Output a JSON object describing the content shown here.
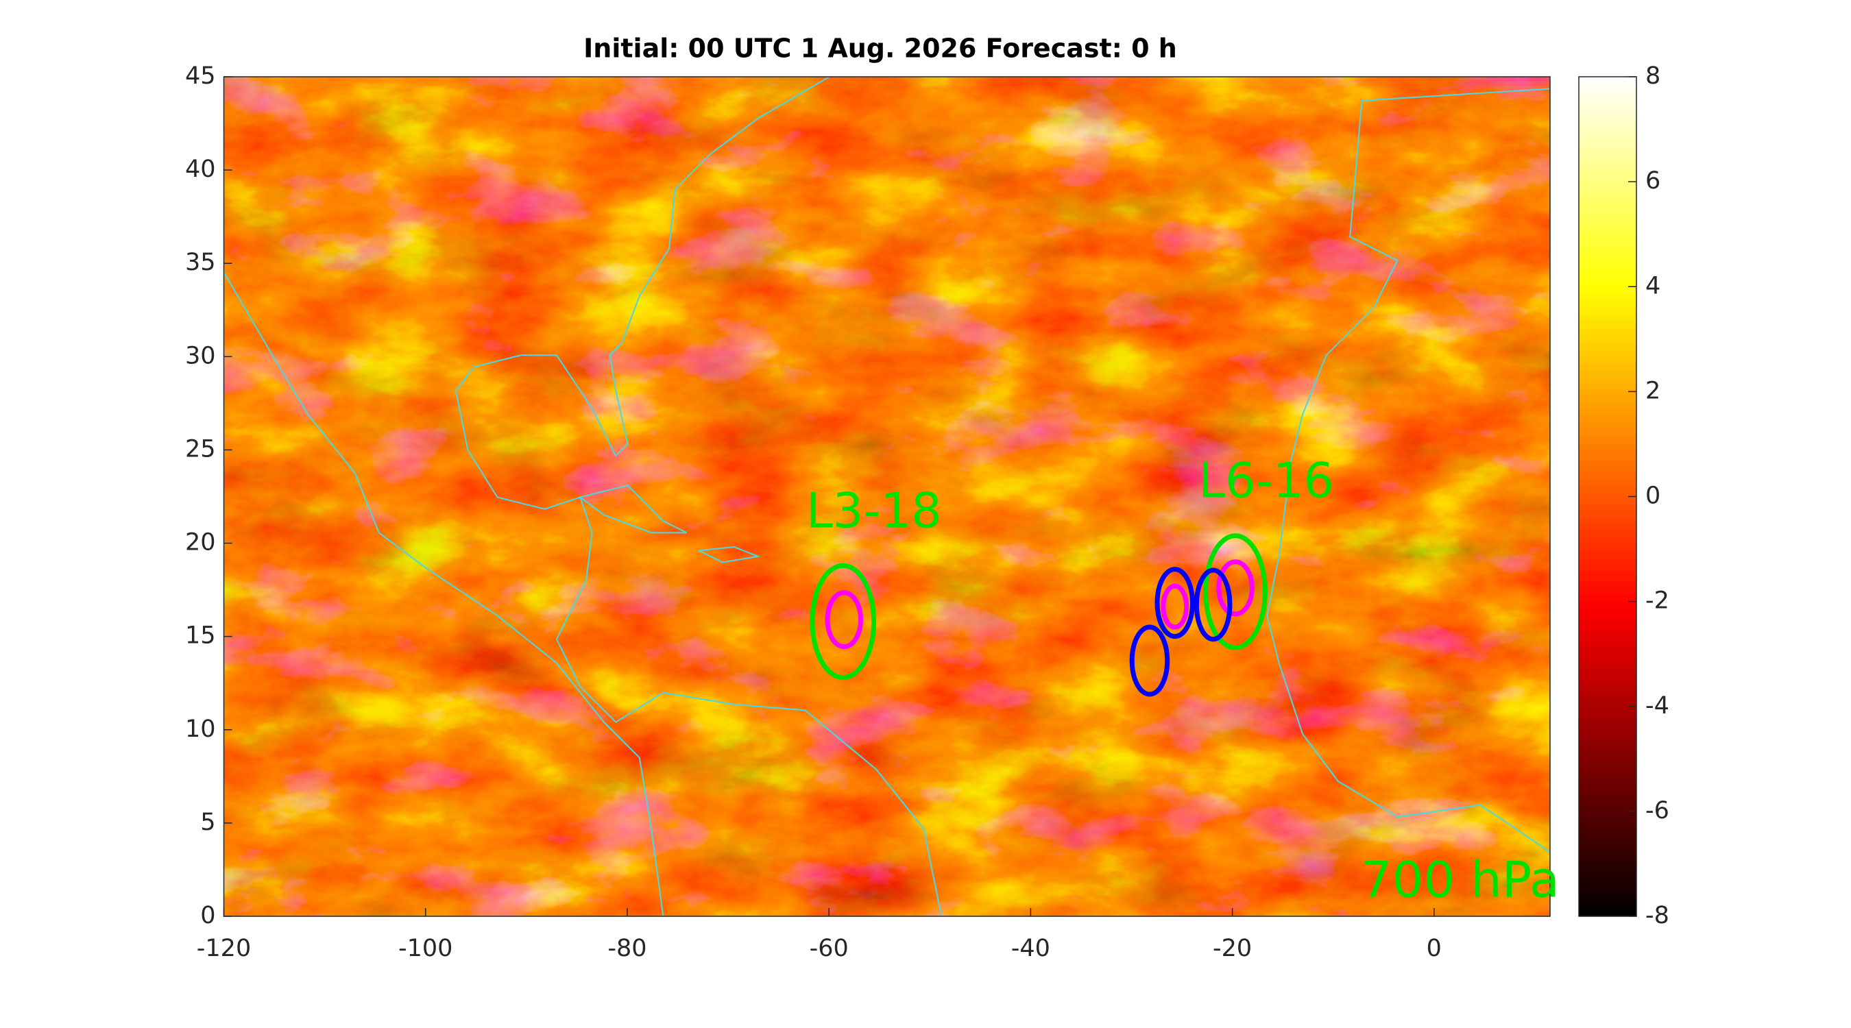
{
  "chart_data": {
    "type": "heatmap-map",
    "title": "Initial: 00 UTC 1 Aug. 2026 Forecast: 0 h",
    "level_label": "700 hPa",
    "xlim": [
      -120,
      11.5
    ],
    "xticks": [
      -120,
      -100,
      -80,
      -60,
      -40,
      -20,
      0
    ],
    "ylim": [
      0,
      45
    ],
    "yticks": [
      0,
      5,
      10,
      15,
      20,
      25,
      30,
      35,
      40,
      45
    ],
    "clim": [
      -8,
      8
    ],
    "cticks": [
      -8,
      -6,
      -4,
      -2,
      0,
      2,
      4,
      6,
      8
    ],
    "systems": [
      {
        "label": "L3-18",
        "color": "#00e000",
        "lon": -58.6,
        "lat": 15.8,
        "width": 6.1,
        "height": 6.0
      },
      {
        "color": "#ff00ff",
        "lon": -58.5,
        "lat": 15.9,
        "width": 3.3,
        "height": 2.9
      },
      {
        "label": "L6-16",
        "color": "#00e000",
        "lon": -19.7,
        "lat": 17.4,
        "width": 5.9,
        "height": 6.0
      },
      {
        "color": "#ff00ff",
        "lon": -19.7,
        "lat": 17.6,
        "width": 3.3,
        "height": 2.8
      },
      {
        "color": "#0000ff",
        "lon": -25.7,
        "lat": 16.8,
        "width": 3.5,
        "height": 3.6
      },
      {
        "color": "#0000ff",
        "lon": -21.9,
        "lat": 16.7,
        "width": 3.3,
        "height": 3.7
      },
      {
        "color": "#0000ff",
        "lon": -28.2,
        "lat": 13.7,
        "width": 3.5,
        "height": 3.6
      },
      {
        "color": "#ff00ff",
        "lon": -25.7,
        "lat": 16.6,
        "width": 2.3,
        "height": 2.2
      }
    ]
  }
}
